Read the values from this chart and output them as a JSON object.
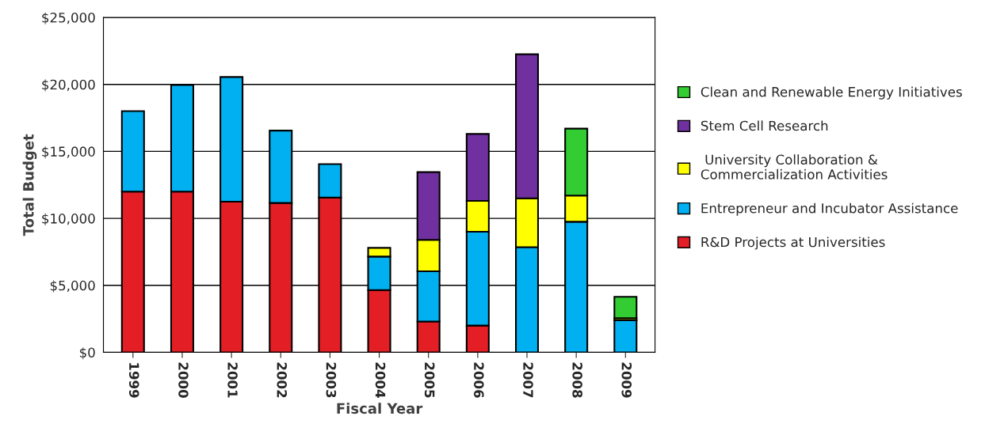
{
  "chart_data": {
    "type": "bar",
    "stacked": true,
    "xlabel": "Fiscal Year",
    "ylabel": "Total Budget",
    "categories": [
      "1999",
      "2000",
      "2001",
      "2002",
      "2003",
      "2004",
      "2005",
      "2006",
      "2007",
      "2008",
      "2009"
    ],
    "series": [
      {
        "name": "R&D Projects at Universities",
        "color": "#e31e24",
        "values": [
          12000,
          12000,
          11250,
          11150,
          11550,
          4650,
          2300,
          2000,
          null,
          null,
          null
        ]
      },
      {
        "name": "Entrepreneur and Incubator Assistance",
        "color": "#00b0f0",
        "values": [
          6000,
          7950,
          9300,
          5400,
          2500,
          2500,
          3750,
          7000,
          7850,
          9750,
          2400
        ]
      },
      {
        "name": " University Collaboration &\nCommercialization Activities",
        "color": "#ffff00",
        "values": [
          null,
          null,
          null,
          null,
          null,
          650,
          2350,
          2300,
          3650,
          1950,
          150
        ]
      },
      {
        "name": "Stem Cell Research",
        "color": "#7030a0",
        "values": [
          null,
          null,
          null,
          null,
          null,
          null,
          5050,
          5000,
          10750,
          null,
          null
        ]
      },
      {
        "name": "Clean and Renewable Energy Initiatives",
        "color": "#33cc33",
        "values": [
          null,
          null,
          null,
          null,
          null,
          null,
          null,
          null,
          null,
          5000,
          1600
        ]
      }
    ],
    "ylim": [
      0,
      25000
    ],
    "yticks": [
      {
        "value": 0,
        "label": "$0"
      },
      {
        "value": 5000,
        "label": "$5,000"
      },
      {
        "value": 10000,
        "label": "$10,000"
      },
      {
        "value": 15000,
        "label": "$15,000"
      },
      {
        "value": 20000,
        "label": "$20,000"
      },
      {
        "value": 25000,
        "label": "$25,000"
      }
    ],
    "grid": "y",
    "legend": "right"
  }
}
